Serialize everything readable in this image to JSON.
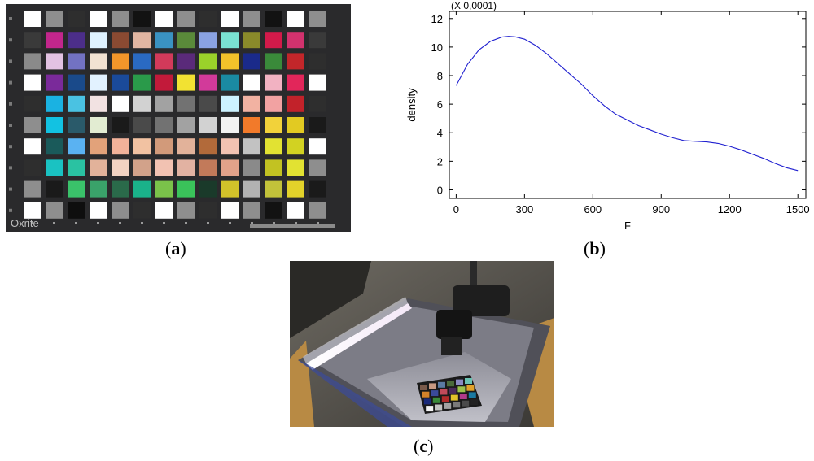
{
  "panels": {
    "a": {
      "label": "a",
      "brand_text": "Oxrite"
    },
    "b": {
      "label": "b"
    },
    "c": {
      "label": "c"
    }
  },
  "target_grid": {
    "rows": [
      [
        "#ffffff",
        "#8e8e8e",
        "#2e2e2e",
        "#ffffff",
        "#8e8e8e",
        "#121212",
        "#ffffff",
        "#8e8e8e",
        "#2e2e2e",
        "#ffffff",
        "#8e8e8e",
        "#121212",
        "#ffffff",
        "#8e8e8e"
      ],
      [
        "#3a3a3a",
        "#c2268c",
        "#4c2e8a",
        "#dff2ff",
        "#8a4a32",
        "#e2b6a2",
        "#3a92c2",
        "#5a8a3a",
        "#8aa2e2",
        "#7ae2d2",
        "#8a8a2a",
        "#d21a4a",
        "#d2326e",
        "#3a3a3a"
      ],
      [
        "#8a8a8a",
        "#e2c2e2",
        "#7272c2",
        "#f2e2d2",
        "#f2962a",
        "#2a6ac2",
        "#d23a5a",
        "#5a2a7a",
        "#9ad22a",
        "#f2c22a",
        "#1a2a8a",
        "#3a8a3a",
        "#c2262a",
        "#2e2e2e"
      ],
      [
        "#ffffff",
        "#7a2a9a",
        "#1a4a8a",
        "#e2f2ff",
        "#1a4a9a",
        "#2a9a4a",
        "#c21a3a",
        "#f2e232",
        "#d23a9a",
        "#1a8aa2",
        "#ffffff",
        "#f2b2c2",
        "#e2265a",
        "#ffffff"
      ],
      [
        "#2e2e2e",
        "#1ab2e2",
        "#4ac2e2",
        "#f2e2e2",
        "#ffffff",
        "#d2d2d2",
        "#a2a2a2",
        "#727272",
        "#4a4a4a",
        "#ccf2ff",
        "#f2b2a2",
        "#f2a2a2",
        "#c2222a",
        "#2e2e2e"
      ],
      [
        "#8e8e8e",
        "#12c2e2",
        "#2a5a6a",
        "#e2ecd2",
        "#1a1a1a",
        "#4a4a4a",
        "#727272",
        "#a2a2a2",
        "#d2d2d2",
        "#f2f2f2",
        "#f27a2a",
        "#f2d23a",
        "#e2ca22",
        "#1a1a1a"
      ],
      [
        "#ffffff",
        "#1a5a5a",
        "#5ab2f2",
        "#e2a27a",
        "#f2b29a",
        "#f2c2a2",
        "#d29a7a",
        "#e2b29a",
        "#b26a3a",
        "#f2c2b2",
        "#c2c2c2",
        "#e2e232",
        "#d2d222",
        "#ffffff"
      ],
      [
        "#2e2e2e",
        "#1ac2c2",
        "#2ac2a2",
        "#e2b29a",
        "#f2d2c2",
        "#d2a28a",
        "#f2c2b2",
        "#e2b2a2",
        "#c27a5a",
        "#e2a28a",
        "#8a8a8a",
        "#c2c222",
        "#e2e232",
        "#8e8e8e"
      ],
      [
        "#8e8e8e",
        "#1a1a1a",
        "#3ac26a",
        "#3aa26a",
        "#2a6a4a",
        "#1ab28a",
        "#7ac24a",
        "#3ac25a",
        "#1a3a2a",
        "#d2c22a",
        "#b2b2b2",
        "#c2c23a",
        "#e2d22a",
        "#1a1a1a"
      ],
      [
        "#ffffff",
        "#8e8e8e",
        "#0e0e0e",
        "#ffffff",
        "#8e8e8e",
        "#2e2e2e",
        "#ffffff",
        "#8e8e8e",
        "#2e2e2e",
        "#ffffff",
        "#8e8e8e",
        "#121212",
        "#ffffff",
        "#8e8e8e"
      ]
    ]
  },
  "chart_data": {
    "type": "line",
    "title": "",
    "multiplier_label": "(X 0,0001)",
    "xlabel": "F",
    "ylabel": "density",
    "xlim": [
      -30,
      1535
    ],
    "ylim": [
      -0.6,
      12.5
    ],
    "x_ticks": [
      0,
      300,
      600,
      900,
      1200,
      1500
    ],
    "x_tick_labels": [
      "0",
      "300",
      "600",
      "900",
      "1200",
      "1500"
    ],
    "y_ticks": [
      0,
      2,
      4,
      6,
      8,
      10,
      12
    ],
    "y_tick_labels": [
      "0",
      "2",
      "4",
      "6",
      "8",
      "10",
      "12"
    ],
    "grid": false,
    "series": [
      {
        "color": "#2020d0",
        "x": [
          0,
          50,
          100,
          150,
          200,
          230,
          260,
          300,
          350,
          400,
          450,
          500,
          550,
          600,
          650,
          700,
          750,
          800,
          850,
          900,
          950,
          1000,
          1050,
          1100,
          1150,
          1200,
          1250,
          1300,
          1350,
          1400,
          1450,
          1500
        ],
        "y": [
          7.3,
          8.8,
          9.8,
          10.4,
          10.7,
          10.75,
          10.72,
          10.55,
          10.1,
          9.5,
          8.8,
          8.1,
          7.4,
          6.6,
          5.9,
          5.3,
          4.9,
          4.5,
          4.2,
          3.9,
          3.65,
          3.45,
          3.4,
          3.35,
          3.25,
          3.05,
          2.8,
          2.5,
          2.2,
          1.85,
          1.55,
          1.35
        ]
      }
    ]
  }
}
